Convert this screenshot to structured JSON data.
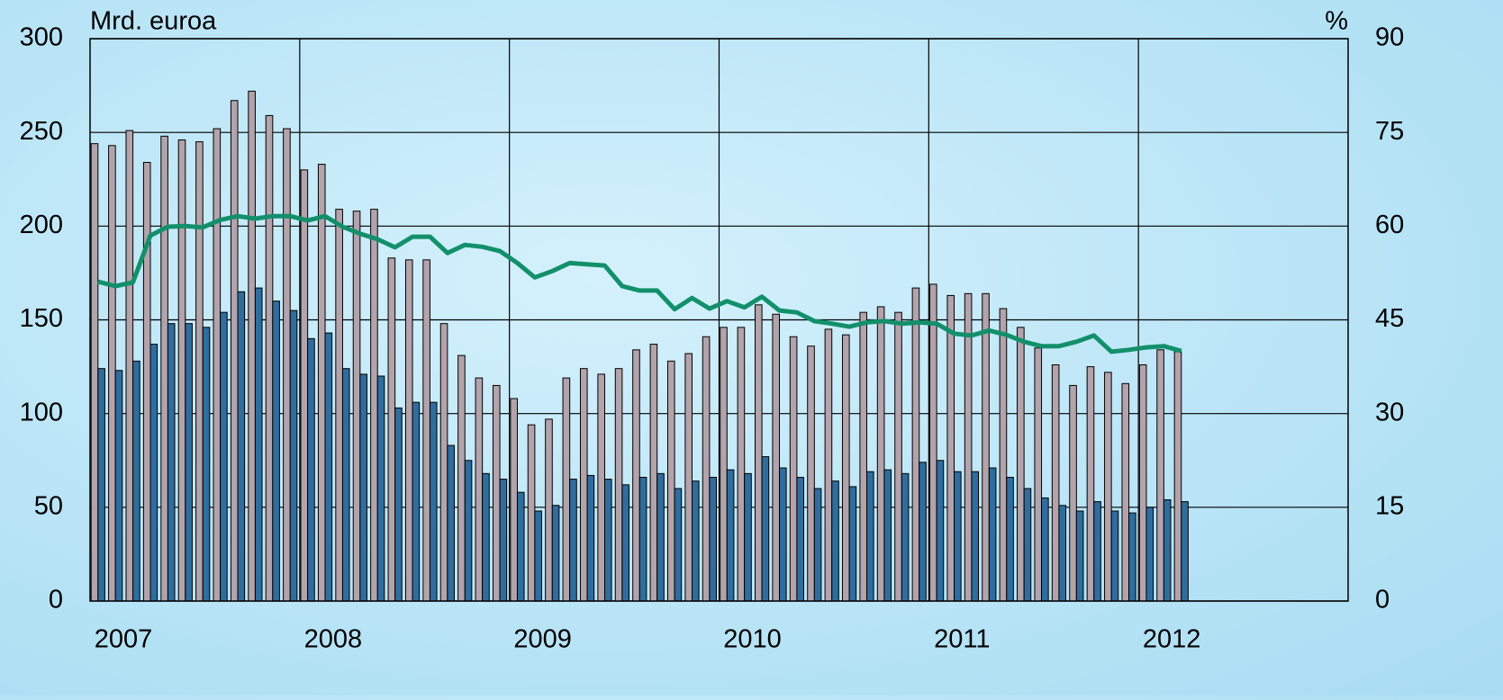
{
  "chart_data": {
    "type": "bar_line",
    "y_unit_label": "Mrd. euroa",
    "y2_unit_label": "%",
    "categories": [
      "2007",
      null,
      null,
      null,
      null,
      null,
      null,
      null,
      null,
      null,
      null,
      null,
      "2008",
      null,
      null,
      null,
      null,
      null,
      null,
      null,
      null,
      null,
      null,
      null,
      "2009",
      null,
      null,
      null,
      null,
      null,
      null,
      null,
      null,
      null,
      null,
      null,
      "2010",
      null,
      null,
      null,
      null,
      null,
      null,
      null,
      null,
      null,
      null,
      null,
      "2011",
      null,
      null,
      null,
      null,
      null,
      null,
      null,
      null,
      null,
      null,
      null,
      "2012",
      null,
      null
    ],
    "series": [
      {
        "type": "bar",
        "color": "#b3a3ab",
        "values": [
          244,
          243,
          251,
          234,
          248,
          246,
          245,
          252,
          267,
          272,
          259,
          252,
          230,
          233,
          209,
          208,
          209,
          183,
          182,
          182,
          148,
          131,
          119,
          115,
          108,
          94,
          97,
          119,
          124,
          121,
          124,
          134,
          137,
          128,
          132,
          141,
          146,
          146,
          158,
          153,
          141,
          136,
          145,
          142,
          154,
          157,
          154,
          167,
          169,
          163,
          164,
          164,
          156,
          146,
          135,
          126,
          115,
          125,
          122,
          116,
          126,
          134,
          133
        ]
      },
      {
        "type": "bar",
        "color": "#2f6d9e",
        "values": [
          124,
          123,
          128,
          137,
          148,
          148,
          146,
          154,
          165,
          167,
          160,
          155,
          140,
          143,
          124,
          121,
          120,
          103,
          106,
          106,
          83,
          75,
          68,
          65,
          58,
          48,
          51,
          65,
          67,
          65,
          62,
          66,
          68,
          60,
          64,
          66,
          70,
          68,
          77,
          71,
          66,
          60,
          64,
          61,
          69,
          70,
          68,
          74,
          75,
          69,
          69,
          71,
          66,
          60,
          55,
          51,
          48,
          53,
          48,
          47,
          50,
          54,
          53
        ]
      },
      {
        "type": "line",
        "axis": "y2",
        "color": "#12906a",
        "values": [
          51.1,
          50.4,
          51,
          58.5,
          59.9,
          60,
          59.8,
          61,
          61.6,
          61.2,
          61.6,
          61.6,
          60.9,
          61.6,
          59.9,
          58.8,
          57.9,
          56.6,
          58.3,
          58.3,
          55.7,
          57,
          56.7,
          56,
          54.1,
          51.8,
          52.8,
          54.1,
          53.9,
          53.7,
          50.4,
          49.7,
          49.7,
          46.7,
          48.5,
          46.8,
          48,
          47,
          48.7,
          46.5,
          46.2,
          44.8,
          44.4,
          43.9,
          44.6,
          44.8,
          44.4,
          44.6,
          44.4,
          42.8,
          42.5,
          43.3,
          42.6,
          41.5,
          40.8,
          40.8,
          41.5,
          42.5,
          39.9,
          40.2,
          40.6,
          40.8,
          40
        ]
      }
    ],
    "ylim": [
      0,
      300
    ],
    "yticks": [
      0,
      50,
      100,
      150,
      200,
      250,
      300
    ],
    "y2lim": [
      0,
      90
    ],
    "y2ticks": [
      0,
      15,
      30,
      45,
      60,
      75,
      90
    ],
    "grid": true
  }
}
